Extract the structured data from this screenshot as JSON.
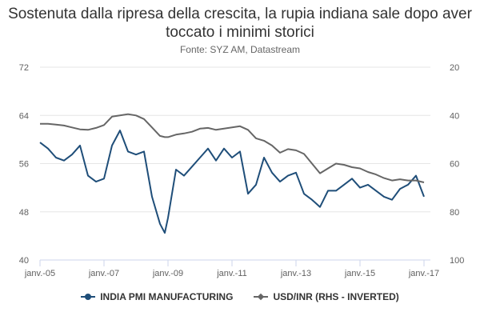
{
  "chart_data": {
    "type": "line",
    "title": "Sostenuta dalla ripresa della crescita, la rupia indiana sale dopo aver toccato i minimi storici",
    "subtitle": "Fonte: SYZ AM, Datastream",
    "x_ticks": [
      "janv.-05",
      "janv.-07",
      "janv.-09",
      "janv.-11",
      "janv.-13",
      "janv.-15",
      "janv.-17"
    ],
    "x_range": [
      2005.0,
      2017.2
    ],
    "y_left": {
      "ticks": [
        40,
        48,
        56,
        64,
        72
      ],
      "min": 40,
      "max": 72
    },
    "y_right": {
      "ticks": [
        20,
        40,
        60,
        80,
        100
      ],
      "min": 20,
      "max": 100,
      "inverted": true
    },
    "grid": true,
    "legend_position": "bottom",
    "series": [
      {
        "name": "INDIA PMI MANUFACTURING",
        "axis": "left",
        "color": "#1f4e79",
        "marker": "circle",
        "x": [
          2005.0,
          2005.25,
          2005.5,
          2005.75,
          2006.0,
          2006.25,
          2006.5,
          2006.75,
          2007.0,
          2007.25,
          2007.5,
          2007.75,
          2008.0,
          2008.25,
          2008.5,
          2008.75,
          2008.9,
          2009.0,
          2009.25,
          2009.5,
          2009.75,
          2010.0,
          2010.25,
          2010.5,
          2010.75,
          2011.0,
          2011.25,
          2011.5,
          2011.75,
          2012.0,
          2012.25,
          2012.5,
          2012.75,
          2013.0,
          2013.25,
          2013.5,
          2013.75,
          2014.0,
          2014.25,
          2014.5,
          2014.75,
          2015.0,
          2015.25,
          2015.5,
          2015.75,
          2016.0,
          2016.25,
          2016.5,
          2016.75,
          2017.0
        ],
        "values": [
          59.5,
          58.5,
          57.0,
          56.5,
          57.5,
          59.0,
          54.0,
          53.0,
          53.5,
          59.0,
          61.5,
          58.0,
          57.5,
          58.0,
          50.5,
          46.0,
          44.5,
          47.0,
          55.0,
          54.0,
          55.5,
          57.0,
          58.5,
          56.5,
          58.5,
          57.0,
          58.0,
          51.0,
          52.5,
          57.0,
          54.5,
          53.0,
          54.0,
          54.5,
          51.0,
          50.0,
          48.8,
          51.5,
          51.5,
          52.5,
          53.5,
          52.0,
          52.5,
          51.5,
          50.5,
          50.0,
          51.8,
          52.5,
          54.0,
          50.5
        ]
      },
      {
        "name": "USD/INR (RHS - INVERTED)",
        "axis": "right",
        "color": "#666666",
        "marker": "diamond",
        "x": [
          2005.0,
          2005.25,
          2005.5,
          2005.75,
          2006.0,
          2006.25,
          2006.5,
          2006.75,
          2007.0,
          2007.25,
          2007.5,
          2007.75,
          2008.0,
          2008.25,
          2008.5,
          2008.75,
          2008.9,
          2009.0,
          2009.25,
          2009.5,
          2009.75,
          2010.0,
          2010.25,
          2010.5,
          2010.75,
          2011.0,
          2011.25,
          2011.5,
          2011.75,
          2012.0,
          2012.25,
          2012.5,
          2012.75,
          2013.0,
          2013.25,
          2013.5,
          2013.75,
          2014.0,
          2014.25,
          2014.5,
          2014.75,
          2015.0,
          2015.25,
          2015.5,
          2015.75,
          2016.0,
          2016.25,
          2016.5,
          2016.75,
          2017.0
        ],
        "values": [
          43.5,
          43.5,
          43.8,
          44.2,
          45.0,
          45.8,
          46.0,
          45.2,
          44.0,
          40.5,
          40.0,
          39.5,
          40.0,
          41.5,
          45.0,
          48.5,
          49.0,
          49.0,
          48.0,
          47.5,
          46.8,
          45.5,
          45.2,
          46.0,
          45.5,
          45.0,
          44.5,
          46.0,
          49.5,
          50.5,
          52.5,
          55.5,
          54.0,
          54.5,
          56.0,
          60.0,
          64.0,
          62.0,
          60.0,
          60.5,
          61.5,
          62.0,
          63.5,
          64.5,
          66.0,
          67.0,
          66.5,
          67.0,
          67.0,
          67.8
        ]
      }
    ]
  }
}
